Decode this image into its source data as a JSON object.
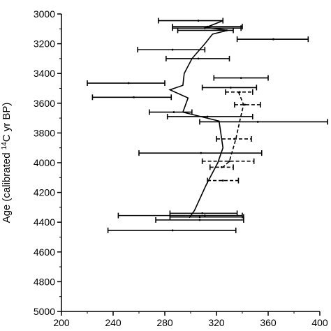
{
  "chart_data": {
    "type": "scatter",
    "title": "",
    "xlabel": "",
    "ylabel_parts": [
      "Age (calibrated ",
      "14",
      "C yr BP)"
    ],
    "xlim": [
      200,
      400
    ],
    "ylim": [
      3000,
      5000
    ],
    "y_reversed": true,
    "x_ticks": [
      200,
      240,
      280,
      320,
      360,
      400
    ],
    "y_ticks": [
      3000,
      3200,
      3400,
      3600,
      3800,
      4000,
      4200,
      4400,
      4600,
      4800,
      5000
    ],
    "grid": false,
    "solid_series": {
      "style": "solid",
      "color": "#000000",
      "points": [
        {
          "y": 3045,
          "x": 306,
          "lo": 275,
          "hi": 325
        },
        {
          "y": 3085,
          "x": 313,
          "lo": 286,
          "hi": 340
        },
        {
          "y": 3095,
          "x": 311,
          "lo": 286,
          "hi": 339
        },
        {
          "y": 3110,
          "x": 328,
          "lo": 290,
          "hi": 333
        },
        {
          "y": 3170,
          "x": 364,
          "lo": 336,
          "hi": 391
        },
        {
          "y": 3240,
          "x": 286,
          "lo": 259,
          "hi": 311
        },
        {
          "y": 3300,
          "x": 306,
          "lo": 281,
          "hi": 330
        },
        {
          "y": 3430,
          "x": 339,
          "lo": 318,
          "hi": 360
        },
        {
          "y": 3465,
          "x": 252,
          "lo": 220,
          "hi": 280
        },
        {
          "y": 3495,
          "x": 331,
          "lo": 309,
          "hi": 351
        },
        {
          "y": 3560,
          "x": 256,
          "lo": 224,
          "hi": 285
        },
        {
          "y": 3660,
          "x": 287,
          "lo": 268,
          "hi": 301
        },
        {
          "y": 3690,
          "x": 313,
          "lo": 282,
          "hi": 348
        },
        {
          "y": 3725,
          "x": 352,
          "lo": 307,
          "hi": 406
        },
        {
          "y": 3935,
          "x": 308,
          "lo": 260,
          "hi": 355
        },
        {
          "y": 4340,
          "x": 309,
          "lo": 284,
          "hi": 336
        },
        {
          "y": 4355,
          "x": 311,
          "lo": 244,
          "hi": 340
        },
        {
          "y": 4365,
          "x": 307,
          "lo": 284,
          "hi": 341
        },
        {
          "y": 4385,
          "x": 307,
          "lo": 273,
          "hi": 341
        },
        {
          "y": 4455,
          "x": 286,
          "lo": 236,
          "hi": 335
        }
      ],
      "trend": [
        {
          "y": 3045,
          "x": 325
        },
        {
          "y": 3090,
          "x": 312
        },
        {
          "y": 3110,
          "x": 329
        },
        {
          "y": 3135,
          "x": 317
        },
        {
          "y": 3200,
          "x": 311
        },
        {
          "y": 3300,
          "x": 301
        },
        {
          "y": 3400,
          "x": 295
        },
        {
          "y": 3480,
          "x": 294
        },
        {
          "y": 3510,
          "x": 284
        },
        {
          "y": 3565,
          "x": 298
        },
        {
          "y": 3660,
          "x": 294
        },
        {
          "y": 3720,
          "x": 322
        },
        {
          "y": 3900,
          "x": 325
        },
        {
          "y": 4000,
          "x": 321
        },
        {
          "y": 4150,
          "x": 312
        },
        {
          "y": 4320,
          "x": 303
        },
        {
          "y": 4370,
          "x": 299
        }
      ]
    },
    "dashed_series": {
      "style": "dashed",
      "color": "#000000",
      "points": [
        {
          "y": 3525,
          "x": 338,
          "lo": 327,
          "hi": 348
        },
        {
          "y": 3610,
          "x": 342,
          "lo": 334,
          "hi": 354
        },
        {
          "y": 3840,
          "x": 334,
          "lo": 320,
          "hi": 347
        },
        {
          "y": 3990,
          "x": 330,
          "lo": 309,
          "hi": 349
        },
        {
          "y": 4030,
          "x": 324,
          "lo": 315,
          "hi": 333
        },
        {
          "y": 4120,
          "x": 325,
          "lo": 313,
          "hi": 337
        }
      ],
      "trend": [
        {
          "y": 3525,
          "x": 337
        },
        {
          "y": 3610,
          "x": 341
        },
        {
          "y": 3720,
          "x": 338
        },
        {
          "y": 3840,
          "x": 335
        },
        {
          "y": 3990,
          "x": 330
        },
        {
          "y": 4030,
          "x": 325
        }
      ]
    }
  }
}
